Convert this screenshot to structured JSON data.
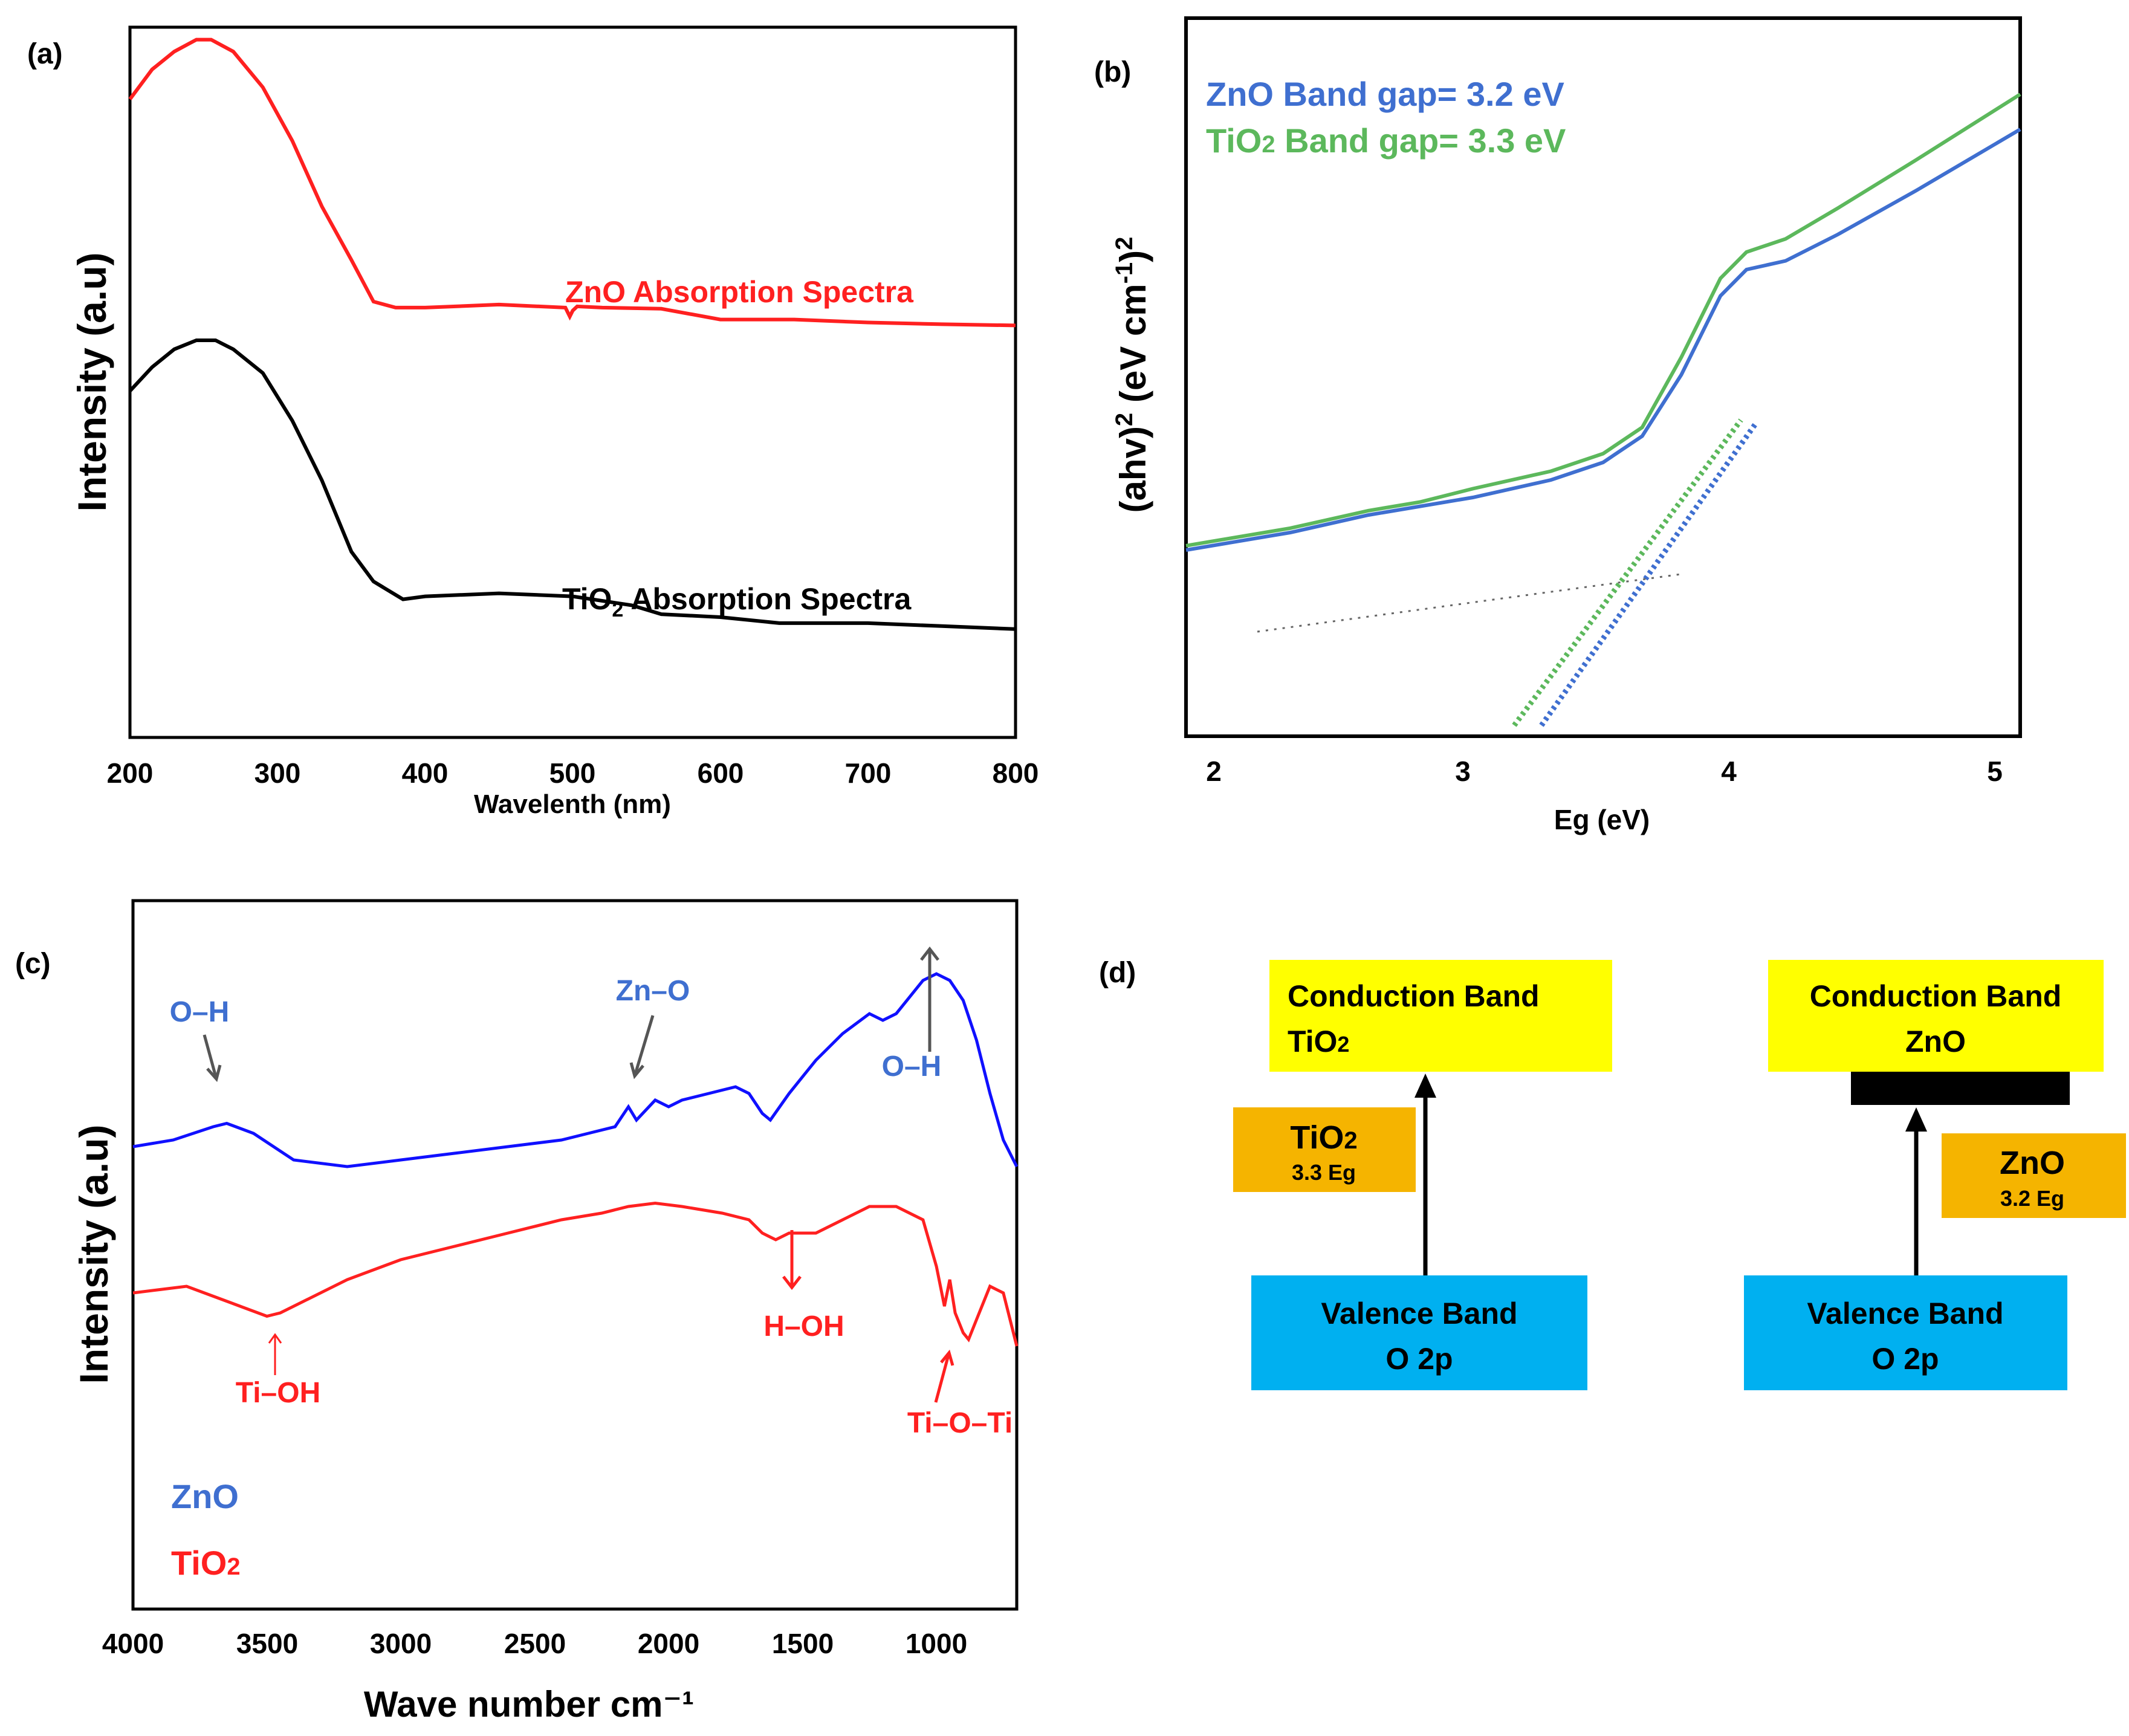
{
  "panels": {
    "a": {
      "tag": "(a)",
      "xlabel": "Wavelenth (nm)",
      "ylabel": "Intensity (a.u)",
      "xticks": [
        "200",
        "300",
        "400",
        "500",
        "600",
        "700",
        "800"
      ],
      "zno_label": "ZnO Absorption Spectra",
      "tio2_label_main": "TiO",
      "tio2_label_sub": "2",
      "tio2_label_rest": " Absorption Spectra"
    },
    "b": {
      "tag": "(b)",
      "xlabel": "Eg (eV)",
      "ylabel_main": "(ahv)",
      "ylabel_sup1": "2",
      "ylabel_mid": " (eV cm",
      "ylabel_sup2": "-1",
      "ylabel_end": ")",
      "ylabel_sup3": "2",
      "xticks": [
        "2",
        "3",
        "4",
        "5"
      ],
      "legend_zno": "ZnO Band gap= 3.2 eV",
      "legend_tio2_main": "TiO",
      "legend_tio2_sub": "2",
      "legend_tio2_rest": " Band gap= 3.3 eV"
    },
    "c": {
      "tag": "(c)",
      "xlabel": "Wave number cm⁻¹",
      "ylabel": "Intensity (a.u)",
      "xticks": [
        "4000",
        "3500",
        "3000",
        "2500",
        "2000",
        "1500",
        "1000"
      ],
      "annotations": {
        "oh_left": "O–H",
        "zno_bond": "Zn–O",
        "oh_right": "O–H",
        "ti_oh": "Ti–OH",
        "h_oh": "H–OH",
        "ti_o_ti": "Ti–O–Ti"
      },
      "legend_zno": "ZnO",
      "legend_tio2_main": "TiO",
      "legend_tio2_sub": "2"
    },
    "d": {
      "tag": "(d)",
      "tio2_cb_line1": "Conduction Band",
      "tio2_cb_line2_main": "TiO",
      "tio2_cb_line2_sub": "2",
      "tio2_gap_main": "TiO",
      "tio2_gap_sub": "2",
      "tio2_gap_eg": "3.3 Eg",
      "tio2_vb_line1": "Valence Band",
      "tio2_vb_line2": "O 2p",
      "zno_cb_line1": "Conduction Band",
      "zno_cb_line2": "ZnO",
      "zno_gap_label": "ZnO",
      "zno_gap_eg": "3.2 Eg",
      "zno_vb_line1": "Valence Band",
      "zno_vb_line2": "O 2p"
    }
  },
  "colors": {
    "red": "#ff2020",
    "black": "#000000",
    "blue": "#3f6fd0",
    "green": "#5cb85c",
    "blue_ftir": "#1010ff",
    "yellow": "#ffff00",
    "orange": "#f5b400",
    "cyan": "#00b0f0"
  },
  "chart_data": [
    {
      "type": "line",
      "panel": "a",
      "title": "",
      "xlabel": "Wavelenth (nm)",
      "ylabel": "Intensity (a.u)",
      "xlim": [
        200,
        800
      ],
      "ylim": [
        0,
        1
      ],
      "series": [
        {
          "name": "ZnO Absorption Spectra",
          "color": "#ff2020",
          "x": [
            200,
            215,
            230,
            245,
            255,
            270,
            290,
            310,
            330,
            350,
            365,
            380,
            400,
            450,
            495,
            498,
            500,
            503,
            520,
            560,
            600,
            650,
            700,
            750,
            800
          ],
          "y": [
            0.94,
            0.99,
            1.02,
            1.04,
            1.04,
            1.02,
            0.96,
            0.87,
            0.76,
            0.67,
            0.6,
            0.59,
            0.59,
            0.595,
            0.59,
            0.575,
            0.585,
            0.592,
            0.59,
            0.588,
            0.57,
            0.57,
            0.565,
            0.562,
            0.56
          ]
        },
        {
          "name": "TiO2 Absorption Spectra",
          "color": "#000000",
          "x": [
            200,
            215,
            230,
            245,
            258,
            270,
            290,
            310,
            330,
            350,
            365,
            385,
            400,
            450,
            500,
            540,
            560,
            600,
            640,
            700,
            750,
            800
          ],
          "y": [
            0.45,
            0.49,
            0.52,
            0.535,
            0.535,
            0.52,
            0.48,
            0.4,
            0.3,
            0.18,
            0.13,
            0.1,
            0.105,
            0.11,
            0.105,
            0.09,
            0.075,
            0.07,
            0.06,
            0.06,
            0.055,
            0.05
          ]
        }
      ]
    },
    {
      "type": "line",
      "panel": "b",
      "title": "",
      "xlabel": "Eg (eV)",
      "ylabel": "(ahv)2 (eV cm-1)2",
      "xlim": [
        1.9,
        5.1
      ],
      "ylim": [
        0,
        1
      ],
      "series": [
        {
          "name": "ZnO Band gap= 3.2 eV",
          "color": "#3f6fd0",
          "x": [
            1.9,
            2.3,
            2.6,
            2.8,
            3.0,
            3.3,
            3.5,
            3.65,
            3.8,
            3.95,
            4.05,
            4.2,
            4.4,
            4.7,
            5.1
          ],
          "y": [
            0.2,
            0.22,
            0.24,
            0.25,
            0.26,
            0.28,
            0.3,
            0.33,
            0.4,
            0.49,
            0.52,
            0.53,
            0.56,
            0.61,
            0.68
          ]
        },
        {
          "name": "TiO2 Band gap= 3.3 eV",
          "color": "#5cb85c",
          "x": [
            1.9,
            2.3,
            2.6,
            2.8,
            3.0,
            3.3,
            3.5,
            3.65,
            3.8,
            3.95,
            4.05,
            4.2,
            4.4,
            4.7,
            5.1
          ],
          "y": [
            0.205,
            0.225,
            0.245,
            0.255,
            0.27,
            0.29,
            0.31,
            0.34,
            0.42,
            0.51,
            0.54,
            0.555,
            0.59,
            0.645,
            0.72
          ]
        }
      ]
    },
    {
      "type": "line",
      "panel": "c",
      "title": "",
      "xlabel": "Wave number cm-1",
      "ylabel": "Intensity (a.u)",
      "xlim": [
        4000,
        700
      ],
      "ylim": [
        0,
        1
      ],
      "series": [
        {
          "name": "ZnO",
          "color": "#1010ff",
          "x": [
            4000,
            3850,
            3700,
            3650,
            3550,
            3400,
            3200,
            3000,
            2800,
            2600,
            2400,
            2300,
            2200,
            2150,
            2120,
            2050,
            2000,
            1950,
            1850,
            1750,
            1700,
            1650,
            1620,
            1550,
            1450,
            1350,
            1250,
            1200,
            1150,
            1050,
            1000,
            950,
            900,
            850,
            800,
            750,
            700
          ],
          "y": [
            0.78,
            0.79,
            0.81,
            0.815,
            0.8,
            0.76,
            0.75,
            0.76,
            0.77,
            0.78,
            0.79,
            0.8,
            0.81,
            0.84,
            0.82,
            0.85,
            0.84,
            0.85,
            0.86,
            0.87,
            0.86,
            0.83,
            0.82,
            0.86,
            0.91,
            0.95,
            0.98,
            0.97,
            0.98,
            1.03,
            1.04,
            1.03,
            1.0,
            0.94,
            0.86,
            0.79,
            0.75
          ]
        },
        {
          "name": "TiO2",
          "color": "#ff2020",
          "x": [
            4000,
            3900,
            3800,
            3700,
            3600,
            3500,
            3450,
            3350,
            3200,
            3000,
            2800,
            2600,
            2400,
            2250,
            2150,
            2050,
            1950,
            1800,
            1700,
            1650,
            1600,
            1550,
            1450,
            1350,
            1250,
            1150,
            1050,
            1000,
            970,
            950,
            930,
            900,
            880,
            850,
            800,
            750,
            700
          ],
          "y": [
            0.56,
            0.565,
            0.57,
            0.555,
            0.54,
            0.525,
            0.53,
            0.55,
            0.58,
            0.61,
            0.63,
            0.65,
            0.67,
            0.68,
            0.69,
            0.695,
            0.69,
            0.68,
            0.67,
            0.65,
            0.64,
            0.65,
            0.65,
            0.67,
            0.69,
            0.69,
            0.67,
            0.6,
            0.54,
            0.58,
            0.53,
            0.5,
            0.49,
            0.52,
            0.57,
            0.56,
            0.48
          ]
        }
      ]
    }
  ]
}
